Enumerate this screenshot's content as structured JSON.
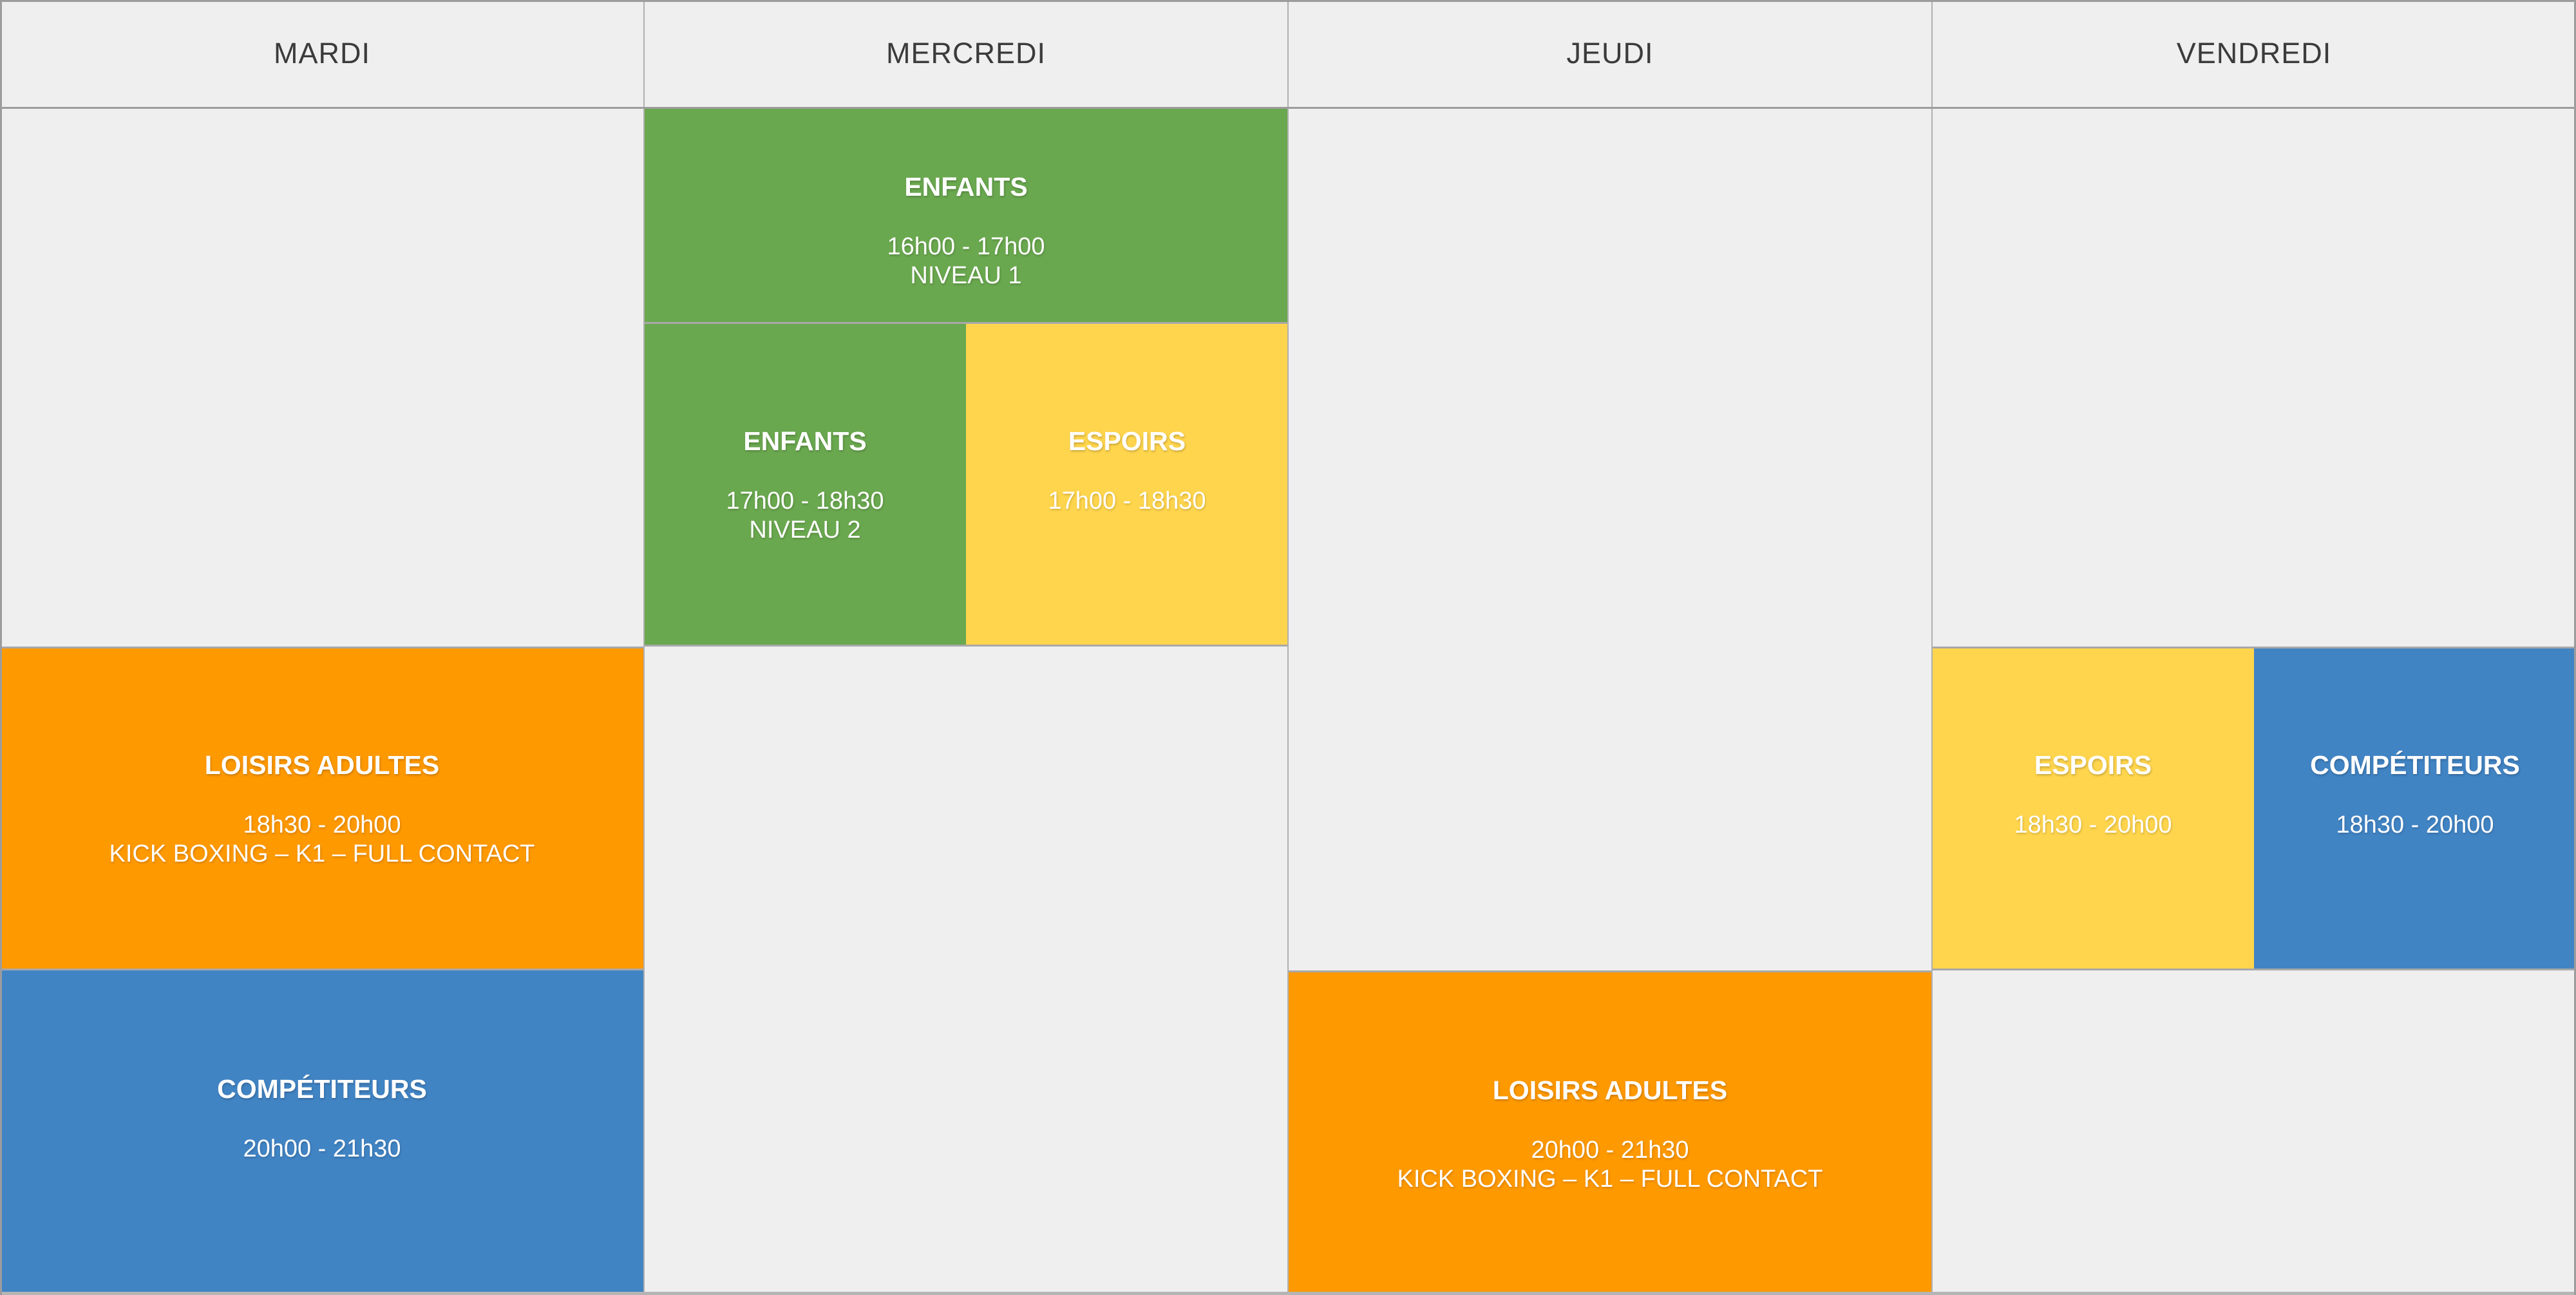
{
  "palette": {
    "background": "#efefef",
    "grid_line": "#a8a8a8",
    "header_text": "#3b3b3b",
    "event_text": "#ffffff",
    "green": "#6aa84f",
    "yellow": "#ffd54d",
    "orange": "#ff9900",
    "blue": "#4184c4"
  },
  "chart_data": {
    "type": "table",
    "columns": [
      "MARDI",
      "MERCREDI",
      "JEUDI",
      "VENDREDI"
    ],
    "time_slots": [
      "16h00 - 17h00",
      "17h00 - 18h30",
      "18h30 - 20h00",
      "20h00 - 21h30"
    ],
    "legend_colors": {
      "ENFANTS": "green",
      "ESPOIRS": "yellow",
      "LOISIRS ADULTES": "orange",
      "COMPÉTITEURS": "blue"
    },
    "events": [
      {
        "day": "MERCREDI",
        "title": "ENFANTS",
        "time": "16h00 - 17h00",
        "note": "NIVEAU 1",
        "start": "16h00",
        "end": "17h00",
        "color": "green"
      },
      {
        "day": "MERCREDI",
        "title": "ENFANTS",
        "time": "17h00 - 18h30",
        "note": "NIVEAU 2",
        "start": "17h00",
        "end": "18h30",
        "color": "green"
      },
      {
        "day": "MERCREDI",
        "title": "ESPOIRS",
        "time": "17h00 - 18h30",
        "note": "",
        "start": "17h00",
        "end": "18h30",
        "color": "yellow"
      },
      {
        "day": "MARDI",
        "title": "LOISIRS ADULTES",
        "time": "18h30 - 20h00",
        "note": "KICK BOXING – K1 – FULL CONTACT",
        "start": "18h30",
        "end": "20h00",
        "color": "orange"
      },
      {
        "day": "MARDI",
        "title": "COMPÉTITEURS",
        "time": "20h00 - 21h30",
        "note": "",
        "start": "20h00",
        "end": "21h30",
        "color": "blue"
      },
      {
        "day": "JEUDI",
        "title": "LOISIRS ADULTES",
        "time": "20h00 - 21h30",
        "note": "KICK BOXING – K1 – FULL CONTACT",
        "start": "20h00",
        "end": "21h30",
        "color": "orange"
      },
      {
        "day": "VENDREDI",
        "title": "ESPOIRS",
        "time": "18h30 - 20h00",
        "note": "",
        "start": "18h30",
        "end": "20h00",
        "color": "yellow"
      },
      {
        "day": "VENDREDI",
        "title": "COMPÉTITEURS",
        "time": "18h30 - 20h00",
        "note": "",
        "start": "18h30",
        "end": "20h00",
        "color": "blue"
      }
    ]
  }
}
